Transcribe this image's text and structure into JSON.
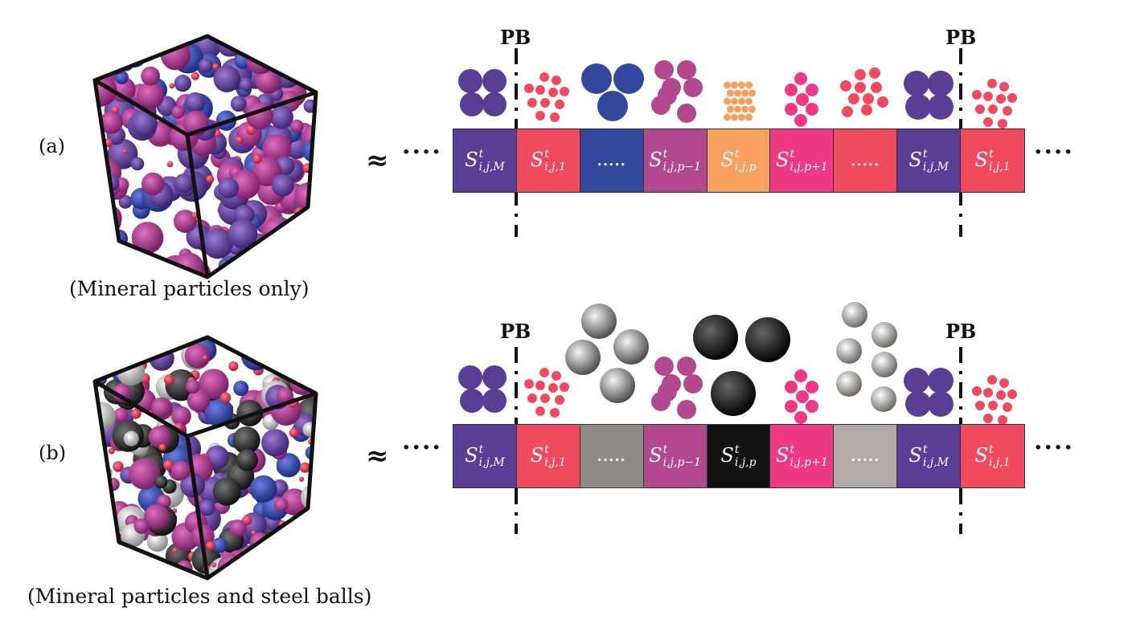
{
  "panels": [
    {
      "label": "(a)",
      "caption": "(Mineral particles only)",
      "approx": "≈",
      "pb_left": "PB",
      "pb_right": "PB",
      "lead_dots": "····",
      "trail_dots": "····",
      "cells": [
        {
          "sup": "t",
          "sub": "i,j,M",
          "color": "#5a3d94"
        },
        {
          "sup": "t",
          "sub": "i,j,1",
          "color": "#ef4a60"
        },
        {
          "dots": ".....",
          "color": "#33479c"
        },
        {
          "sup": "t",
          "sub": "i,j,p−1",
          "color": "#b2488e"
        },
        {
          "sup": "t",
          "sub": "i,j,p",
          "color": "#f8a060"
        },
        {
          "sup": "t",
          "sub": "i,j,p+1",
          "color": "#ee3a86"
        },
        {
          "dots": ".....",
          "color": "#ef4a60"
        },
        {
          "sup": "t",
          "sub": "i,j,M",
          "color": "#5a3d94"
        },
        {
          "sup": "t",
          "sub": "i,j,1",
          "color": "#ef4a60"
        }
      ]
    },
    {
      "label": "(b)",
      "caption": "(Mineral particles and steel balls)",
      "approx": "≈",
      "pb_left": "PB",
      "pb_right": "PB",
      "lead_dots": "····",
      "trail_dots": "····",
      "cells": [
        {
          "sup": "t",
          "sub": "i,j,M",
          "color": "#5a3d94"
        },
        {
          "sup": "t",
          "sub": "i,j,1",
          "color": "#ef4a60"
        },
        {
          "dots": ".....",
          "color": "#8e8a86"
        },
        {
          "sup": "t",
          "sub": "i,j,p−1",
          "color": "#b2488e"
        },
        {
          "sup": "t",
          "sub": "i,j,p",
          "color": "#111111"
        },
        {
          "sup": "t",
          "sub": "i,j,p+1",
          "color": "#ee3a86"
        },
        {
          "dots": ".....",
          "color": "#b4aca4"
        },
        {
          "sup": "t",
          "sub": "i,j,M",
          "color": "#5a3d94"
        },
        {
          "sup": "t",
          "sub": "i,j,1",
          "color": "#ef4a60"
        }
      ]
    }
  ],
  "symbol_letter": "S",
  "colors": {
    "mineral_purple": "#5a3d94",
    "mineral_red": "#ef4a60",
    "mineral_blue": "#33479c",
    "mineral_magenta": "#b2488e",
    "mineral_orange": "#f8a060",
    "mineral_pink": "#ee3a86",
    "steel_gray": "#8e8a86",
    "steel_black": "#111111",
    "steel_light": "#b4aca4"
  }
}
